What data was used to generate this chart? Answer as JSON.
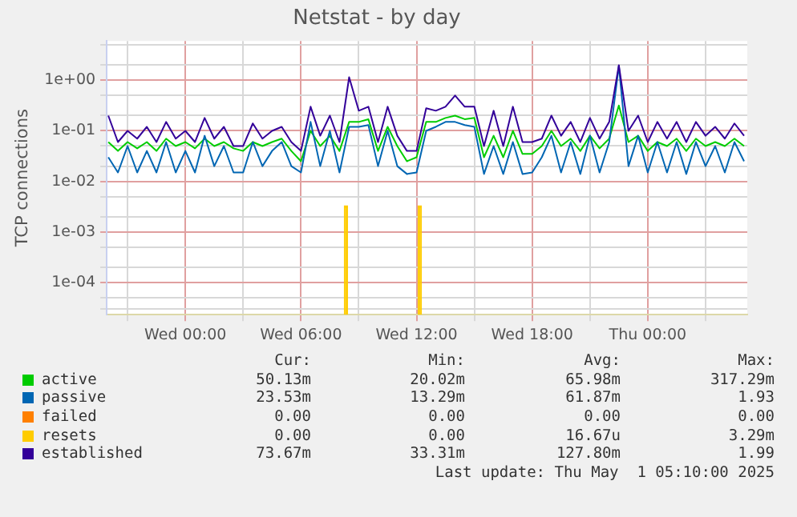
{
  "chart_data": {
    "type": "line",
    "title": "Netstat - by day",
    "ylabel": "TCP connections",
    "log": "y",
    "grid": true,
    "legend": "bottom",
    "marker": "none",
    "line_style": "solid",
    "x": [
      "2025-04-29T20:00",
      "2025-04-29T20:30",
      "2025-04-29T21:00",
      "2025-04-29T21:30",
      "2025-04-29T22:00",
      "2025-04-29T22:30",
      "2025-04-29T23:00",
      "2025-04-29T23:30",
      "2025-04-30T00:00",
      "2025-04-30T00:30",
      "2025-04-30T01:00",
      "2025-04-30T01:30",
      "2025-04-30T02:00",
      "2025-04-30T02:30",
      "2025-04-30T03:00",
      "2025-04-30T03:30",
      "2025-04-30T04:00",
      "2025-04-30T04:30",
      "2025-04-30T05:00",
      "2025-04-30T05:30",
      "2025-04-30T06:00",
      "2025-04-30T06:30",
      "2025-04-30T07:00",
      "2025-04-30T07:30",
      "2025-04-30T08:00",
      "2025-04-30T08:30",
      "2025-04-30T09:00",
      "2025-04-30T09:30",
      "2025-04-30T10:00",
      "2025-04-30T10:30",
      "2025-04-30T11:00",
      "2025-04-30T11:30",
      "2025-04-30T12:00",
      "2025-04-30T12:30",
      "2025-04-30T13:00",
      "2025-04-30T13:30",
      "2025-04-30T14:00",
      "2025-04-30T14:30",
      "2025-04-30T15:00",
      "2025-04-30T15:30",
      "2025-04-30T16:00",
      "2025-04-30T16:30",
      "2025-04-30T17:00",
      "2025-04-30T17:30",
      "2025-04-30T18:00",
      "2025-04-30T18:30",
      "2025-04-30T19:00",
      "2025-04-30T19:30",
      "2025-04-30T20:00",
      "2025-04-30T20:30",
      "2025-04-30T21:00",
      "2025-04-30T21:30",
      "2025-04-30T22:00",
      "2025-04-30T22:30",
      "2025-04-30T23:00",
      "2025-04-30T23:30",
      "2025-05-01T00:00",
      "2025-05-01T00:30",
      "2025-05-01T01:00",
      "2025-05-01T01:30",
      "2025-05-01T02:00",
      "2025-05-01T02:30",
      "2025-05-01T03:00",
      "2025-05-01T03:30",
      "2025-05-01T04:00",
      "2025-05-01T04:30",
      "2025-05-01T05:00"
    ],
    "xlim": [
      "2025-04-29T19:55",
      "2025-05-01T05:10"
    ],
    "xticks": [
      {
        "value": "2025-04-29T21:00",
        "label": null
      },
      {
        "value": "2025-04-30T00:00",
        "label": "Wed 00:00"
      },
      {
        "value": "2025-04-30T03:00",
        "label": null
      },
      {
        "value": "2025-04-30T06:00",
        "label": "Wed 06:00"
      },
      {
        "value": "2025-04-30T09:00",
        "label": null
      },
      {
        "value": "2025-04-30T12:00",
        "label": "Wed 12:00"
      },
      {
        "value": "2025-04-30T15:00",
        "label": null
      },
      {
        "value": "2025-04-30T18:00",
        "label": "Wed 18:00"
      },
      {
        "value": "2025-04-30T21:00",
        "label": null
      },
      {
        "value": "2025-05-01T00:00",
        "label": "Thu 00:00"
      },
      {
        "value": "2025-05-01T03:00",
        "label": null
      }
    ],
    "ylim": [
      2.3e-05,
      6
    ],
    "yticks": [
      {
        "value": 3e-05,
        "label": null
      },
      {
        "value": 5e-05,
        "label": null
      },
      {
        "value": 0.0001,
        "label": "1e-04"
      },
      {
        "value": 0.0002,
        "label": null
      },
      {
        "value": 0.0005,
        "label": null
      },
      {
        "value": 0.001,
        "label": "1e-03"
      },
      {
        "value": 0.002,
        "label": null
      },
      {
        "value": 0.005,
        "label": null
      },
      {
        "value": 0.01,
        "label": "1e-02"
      },
      {
        "value": 0.02,
        "label": null
      },
      {
        "value": 0.05,
        "label": null
      },
      {
        "value": 0.1,
        "label": "1e-01"
      },
      {
        "value": 0.2,
        "label": null
      },
      {
        "value": 0.5,
        "label": null
      },
      {
        "value": 1,
        "label": "1e+00"
      },
      {
        "value": 2,
        "label": null
      },
      {
        "value": 5,
        "label": null
      }
    ],
    "series": [
      {
        "name": "active",
        "color": "#00cc00",
        "values": [
          0.06,
          0.04,
          0.06,
          0.045,
          0.06,
          0.04,
          0.07,
          0.05,
          0.06,
          0.045,
          0.07,
          0.05,
          0.06,
          0.045,
          0.04,
          0.06,
          0.05,
          0.06,
          0.07,
          0.04,
          0.025,
          0.1,
          0.05,
          0.08,
          0.04,
          0.15,
          0.15,
          0.17,
          0.04,
          0.12,
          0.05,
          0.025,
          0.03,
          0.15,
          0.15,
          0.18,
          0.2,
          0.17,
          0.18,
          0.03,
          0.08,
          0.03,
          0.1,
          0.035,
          0.035,
          0.05,
          0.1,
          0.05,
          0.07,
          0.04,
          0.08,
          0.045,
          0.07,
          0.317,
          0.06,
          0.08,
          0.04,
          0.06,
          0.05,
          0.07,
          0.04,
          0.07,
          0.05,
          0.06,
          0.05,
          0.07,
          0.05
        ]
      },
      {
        "name": "passive",
        "color": "#0066b3",
        "values": [
          0.03,
          0.015,
          0.05,
          0.015,
          0.04,
          0.015,
          0.06,
          0.015,
          0.04,
          0.015,
          0.08,
          0.02,
          0.05,
          0.015,
          0.015,
          0.06,
          0.02,
          0.04,
          0.06,
          0.02,
          0.015,
          0.15,
          0.02,
          0.1,
          0.015,
          0.12,
          0.12,
          0.13,
          0.02,
          0.1,
          0.02,
          0.014,
          0.015,
          0.1,
          0.12,
          0.15,
          0.15,
          0.13,
          0.12,
          0.014,
          0.05,
          0.014,
          0.06,
          0.014,
          0.015,
          0.03,
          0.08,
          0.015,
          0.06,
          0.014,
          0.08,
          0.015,
          0.06,
          1.93,
          0.02,
          0.08,
          0.015,
          0.06,
          0.015,
          0.06,
          0.014,
          0.06,
          0.02,
          0.05,
          0.015,
          0.06,
          0.025
        ]
      },
      {
        "name": "failed",
        "color": "#ff8000",
        "values": [
          null,
          null,
          null,
          null,
          null,
          null,
          null,
          null,
          null,
          null,
          null,
          null,
          null,
          null,
          null,
          null,
          null,
          null,
          null,
          null,
          null,
          null,
          null,
          null,
          null,
          null,
          null,
          null,
          null,
          null,
          null,
          null,
          null,
          null,
          null,
          null,
          null,
          null,
          null,
          null,
          null,
          null,
          null,
          null,
          null,
          null,
          null,
          null,
          null,
          null,
          null,
          null,
          null,
          null,
          null,
          null,
          null,
          null,
          null,
          null,
          null,
          null,
          null,
          null,
          null,
          null,
          null
        ]
      },
      {
        "name": "resets",
        "type": "bar",
        "color": "#ffcc00",
        "x": [
          "2025-04-30T08:20",
          "2025-04-30T12:10"
        ],
        "values": [
          0.00329,
          0.00329
        ]
      },
      {
        "name": "established",
        "color": "#330099",
        "values": [
          0.2,
          0.06,
          0.1,
          0.07,
          0.12,
          0.06,
          0.15,
          0.07,
          0.1,
          0.06,
          0.18,
          0.07,
          0.12,
          0.05,
          0.05,
          0.14,
          0.07,
          0.1,
          0.12,
          0.06,
          0.04,
          0.3,
          0.08,
          0.2,
          0.06,
          1.15,
          0.25,
          0.3,
          0.06,
          0.3,
          0.08,
          0.04,
          0.04,
          0.28,
          0.25,
          0.3,
          0.5,
          0.3,
          0.3,
          0.05,
          0.25,
          0.05,
          0.3,
          0.06,
          0.06,
          0.07,
          0.2,
          0.08,
          0.15,
          0.06,
          0.18,
          0.07,
          0.15,
          1.99,
          0.1,
          0.2,
          0.06,
          0.15,
          0.07,
          0.15,
          0.06,
          0.15,
          0.08,
          0.12,
          0.07,
          0.14,
          0.08
        ]
      }
    ],
    "annotations": [
      "Cur:",
      "Min:",
      "Avg:",
      "Max:",
      "50.13m",
      "20.02m",
      "65.98m",
      "317.29m",
      "23.53m",
      "13.29m",
      "61.87m",
      "1.93",
      "0.00",
      "0.00",
      "0.00",
      "0.00",
      "0.00",
      "0.00",
      "16.67u",
      "3.29m",
      "73.67m",
      "33.31m",
      "127.80m",
      "1.99",
      "Last update: Thu May  1 05:10:00 2025"
    ]
  }
}
